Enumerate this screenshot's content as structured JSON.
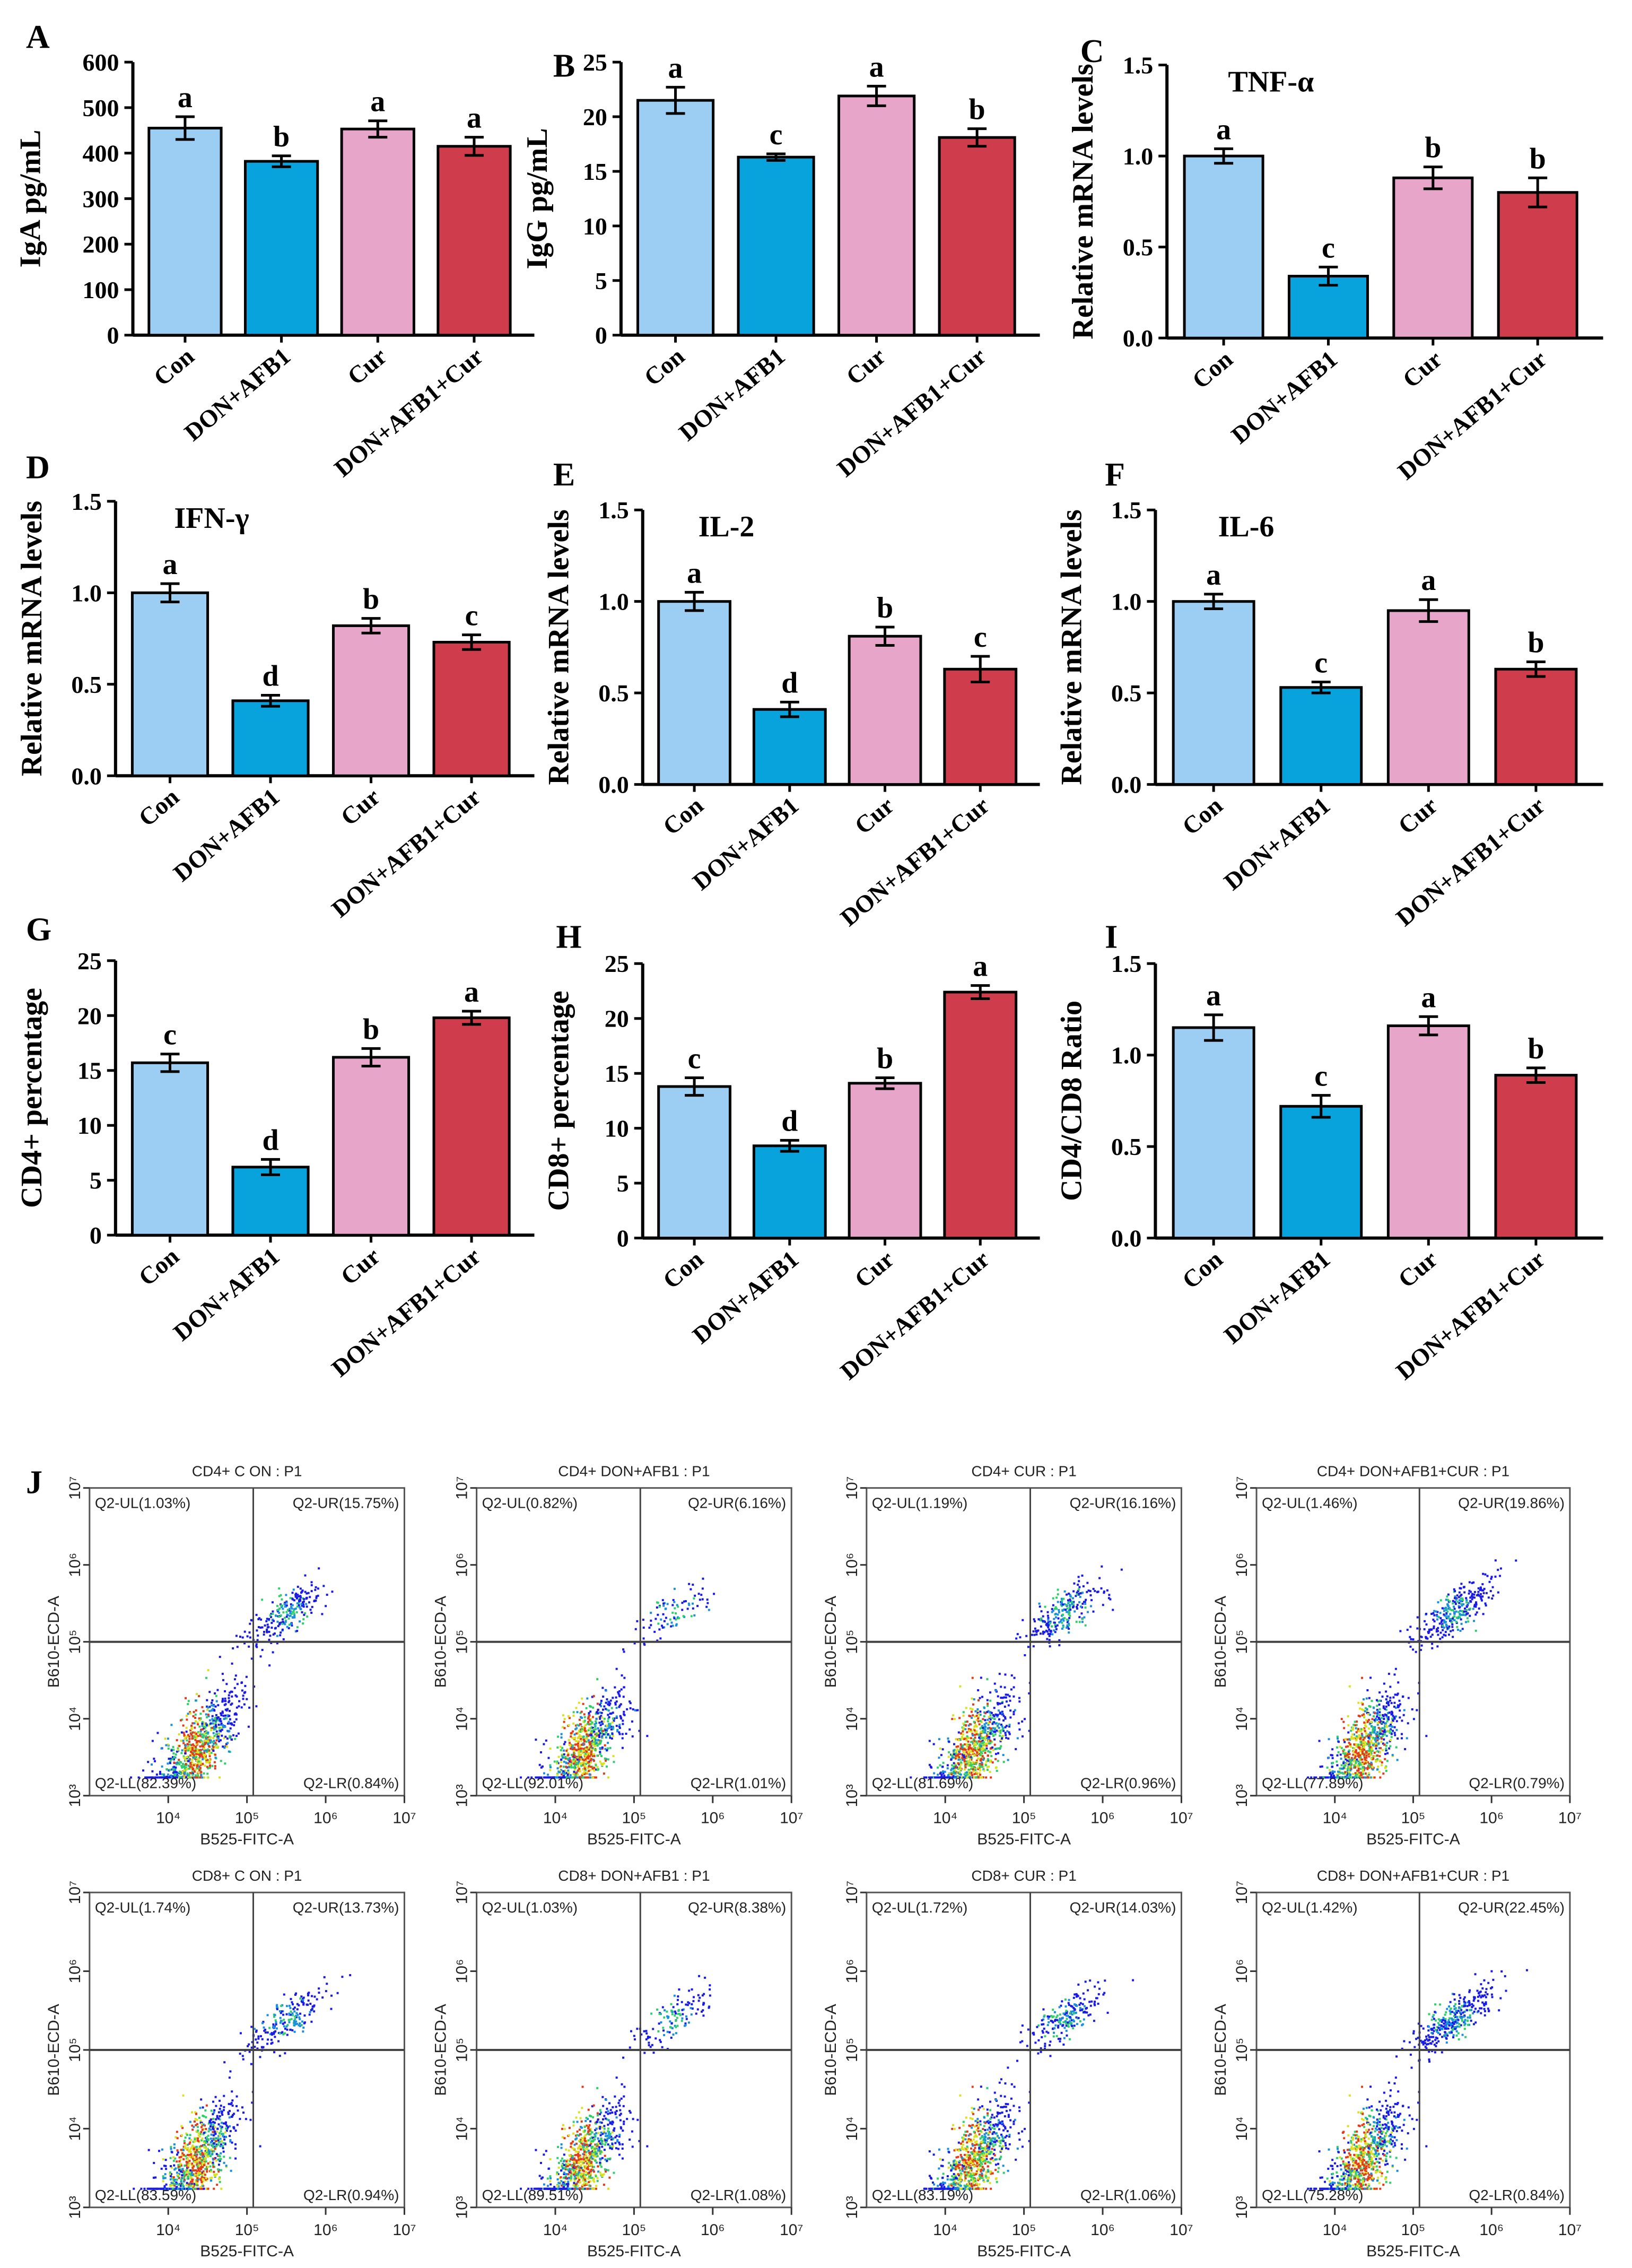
{
  "colors": {
    "Con": "#9ccdf3",
    "DON+AFB1": "#08a3dd",
    "Cur": "#e7a6c9",
    "DON+AFB1+Cur": "#cf3d4c",
    "axis": "#000000",
    "quadrant_line": "#444444"
  },
  "chart_data": [
    {
      "panel": "A",
      "type": "bar",
      "title": "",
      "ylabel": "IgA pg/mL",
      "ylim": [
        0,
        600
      ],
      "yticks": [
        "0",
        "100",
        "200",
        "300",
        "400",
        "500",
        "600"
      ],
      "categories": [
        "Con",
        "DON+AFB1",
        "Cur",
        "DON+AFB1+Cur"
      ],
      "values": [
        455,
        382,
        453,
        415
      ],
      "errors": [
        25,
        12,
        18,
        20
      ],
      "letters": [
        "a",
        "b",
        "a",
        "a"
      ]
    },
    {
      "panel": "B",
      "type": "bar",
      "title": "",
      "ylabel": "IgG pg/mL",
      "ylim": [
        0,
        25
      ],
      "yticks": [
        "0",
        "5",
        "10",
        "15",
        "20",
        "25"
      ],
      "categories": [
        "Con",
        "DON+AFB1",
        "Cur",
        "DON+AFB1+Cur"
      ],
      "values": [
        21.5,
        16.3,
        21.9,
        18.1
      ],
      "errors": [
        1.2,
        0.3,
        0.9,
        0.8
      ],
      "letters": [
        "a",
        "c",
        "a",
        "b"
      ]
    },
    {
      "panel": "C",
      "type": "bar",
      "title": "TNF-α",
      "ylabel": "Relative mRNA levels",
      "ylim": [
        0,
        1.5
      ],
      "yticks": [
        "0.0",
        "0.5",
        "1.0",
        "1.5"
      ],
      "categories": [
        "Con",
        "DON+AFB1",
        "Cur",
        "DON+AFB1+Cur"
      ],
      "values": [
        1.0,
        0.34,
        0.88,
        0.8
      ],
      "errors": [
        0.04,
        0.05,
        0.06,
        0.08
      ],
      "letters": [
        "a",
        "c",
        "b",
        "b"
      ]
    },
    {
      "panel": "D",
      "type": "bar",
      "title": "IFN-γ",
      "ylabel": "Relative mRNA levels",
      "ylim": [
        0,
        1.5
      ],
      "yticks": [
        "0.0",
        "0.5",
        "1.0",
        "1.5"
      ],
      "categories": [
        "Con",
        "DON+AFB1",
        "Cur",
        "DON+AFB1+Cur"
      ],
      "values": [
        1.0,
        0.41,
        0.82,
        0.73
      ],
      "errors": [
        0.05,
        0.03,
        0.04,
        0.04
      ],
      "letters": [
        "a",
        "d",
        "b",
        "c"
      ]
    },
    {
      "panel": "E",
      "type": "bar",
      "title": "IL-2",
      "ylabel": "Relative mRNA levels",
      "ylim": [
        0,
        1.5
      ],
      "yticks": [
        "0.0",
        "0.5",
        "1.0",
        "1.5"
      ],
      "categories": [
        "Con",
        "DON+AFB1",
        "Cur",
        "DON+AFB1+Cur"
      ],
      "values": [
        1.0,
        0.41,
        0.81,
        0.63
      ],
      "errors": [
        0.05,
        0.04,
        0.05,
        0.07
      ],
      "letters": [
        "a",
        "d",
        "b",
        "c"
      ]
    },
    {
      "panel": "F",
      "type": "bar",
      "title": "IL-6",
      "ylabel": "Relative mRNA levels",
      "ylim": [
        0,
        1.5
      ],
      "yticks": [
        "0.0",
        "0.5",
        "1.0",
        "1.5"
      ],
      "categories": [
        "Con",
        "DON+AFB1",
        "Cur",
        "DON+AFB1+Cur"
      ],
      "values": [
        1.0,
        0.53,
        0.95,
        0.63
      ],
      "errors": [
        0.04,
        0.03,
        0.06,
        0.04
      ],
      "letters": [
        "a",
        "c",
        "a",
        "b"
      ]
    },
    {
      "panel": "G",
      "type": "bar",
      "title": "",
      "ylabel": "CD4+ percentage",
      "ylim": [
        0,
        25
      ],
      "yticks": [
        "0",
        "5",
        "10",
        "15",
        "20",
        "25"
      ],
      "categories": [
        "Con",
        "DON+AFB1",
        "Cur",
        "DON+AFB1+Cur"
      ],
      "values": [
        15.7,
        6.2,
        16.2,
        19.8
      ],
      "errors": [
        0.8,
        0.7,
        0.8,
        0.6
      ],
      "letters": [
        "c",
        "d",
        "b",
        "a"
      ]
    },
    {
      "panel": "H",
      "type": "bar",
      "title": "",
      "ylabel": "CD8+ percentage",
      "ylim": [
        0,
        25
      ],
      "yticks": [
        "0",
        "5",
        "10",
        "15",
        "20",
        "25"
      ],
      "categories": [
        "Con",
        "DON+AFB1",
        "Cur",
        "DON+AFB1+Cur"
      ],
      "values": [
        13.8,
        8.4,
        14.1,
        22.4
      ],
      "errors": [
        0.8,
        0.5,
        0.5,
        0.6
      ],
      "letters": [
        "c",
        "d",
        "b",
        "a"
      ]
    },
    {
      "panel": "I",
      "type": "bar",
      "title": "",
      "ylabel": "CD4/CD8 Ratio",
      "ylim": [
        0,
        1.5
      ],
      "yticks": [
        "0.0",
        "0.5",
        "1.0",
        "1.5"
      ],
      "categories": [
        "Con",
        "DON+AFB1",
        "Cur",
        "DON+AFB1+Cur"
      ],
      "values": [
        1.15,
        0.72,
        1.16,
        0.89
      ],
      "errors": [
        0.07,
        0.06,
        0.05,
        0.04
      ],
      "letters": [
        "a",
        "c",
        "a",
        "b"
      ]
    }
  ],
  "flow": {
    "panel": "J",
    "type": "scatter",
    "xlabel": "B525-FITC-A",
    "ylabel": "B610-ECD-A",
    "xticks": [
      "10⁴",
      "10⁵",
      "10⁶",
      "10⁷"
    ],
    "yticks": [
      "10³",
      "10⁴",
      "10⁵",
      "10⁶",
      "10⁷"
    ],
    "plots": [
      {
        "title": "CD4+ C ON : P1",
        "UL": "Q2-UL(1.03%)",
        "UR": "Q2-UR(15.75%)",
        "LL": "Q2-LL(82.39%)",
        "LR": "Q2-LR(0.84%)",
        "ur_pct": 15.75
      },
      {
        "title": "CD4+ DON+AFB1 : P1",
        "UL": "Q2-UL(0.82%)",
        "UR": "Q2-UR(6.16%)",
        "LL": "Q2-LL(92.01%)",
        "LR": "Q2-LR(1.01%)",
        "ur_pct": 6.16
      },
      {
        "title": "CD4+ CUR : P1",
        "UL": "Q2-UL(1.19%)",
        "UR": "Q2-UR(16.16%)",
        "LL": "Q2-LL(81.69%)",
        "LR": "Q2-LR(0.96%)",
        "ur_pct": 16.16
      },
      {
        "title": "CD4+ DON+AFB1+CUR : P1",
        "UL": "Q2-UL(1.46%)",
        "UR": "Q2-UR(19.86%)",
        "LL": "Q2-LL(77.89%)",
        "LR": "Q2-LR(0.79%)",
        "ur_pct": 19.86
      },
      {
        "title": "CD8+ C ON : P1",
        "UL": "Q2-UL(1.74%)",
        "UR": "Q2-UR(13.73%)",
        "LL": "Q2-LL(83.59%)",
        "LR": "Q2-LR(0.94%)",
        "ur_pct": 13.73
      },
      {
        "title": "CD8+ DON+AFB1 : P1",
        "UL": "Q2-UL(1.03%)",
        "UR": "Q2-UR(8.38%)",
        "LL": "Q2-LL(89.51%)",
        "LR": "Q2-LR(1.08%)",
        "ur_pct": 8.38
      },
      {
        "title": "CD8+ CUR : P1",
        "UL": "Q2-UL(1.72%)",
        "UR": "Q2-UR(14.03%)",
        "LL": "Q2-LL(83.19%)",
        "LR": "Q2-LR(1.06%)",
        "ur_pct": 14.03
      },
      {
        "title": "CD8+ DON+AFB1+CUR : P1",
        "UL": "Q2-UL(1.42%)",
        "UR": "Q2-UR(22.45%)",
        "LL": "Q2-LL(75.28%)",
        "LR": "Q2-LR(0.84%)",
        "ur_pct": 22.45
      }
    ]
  }
}
